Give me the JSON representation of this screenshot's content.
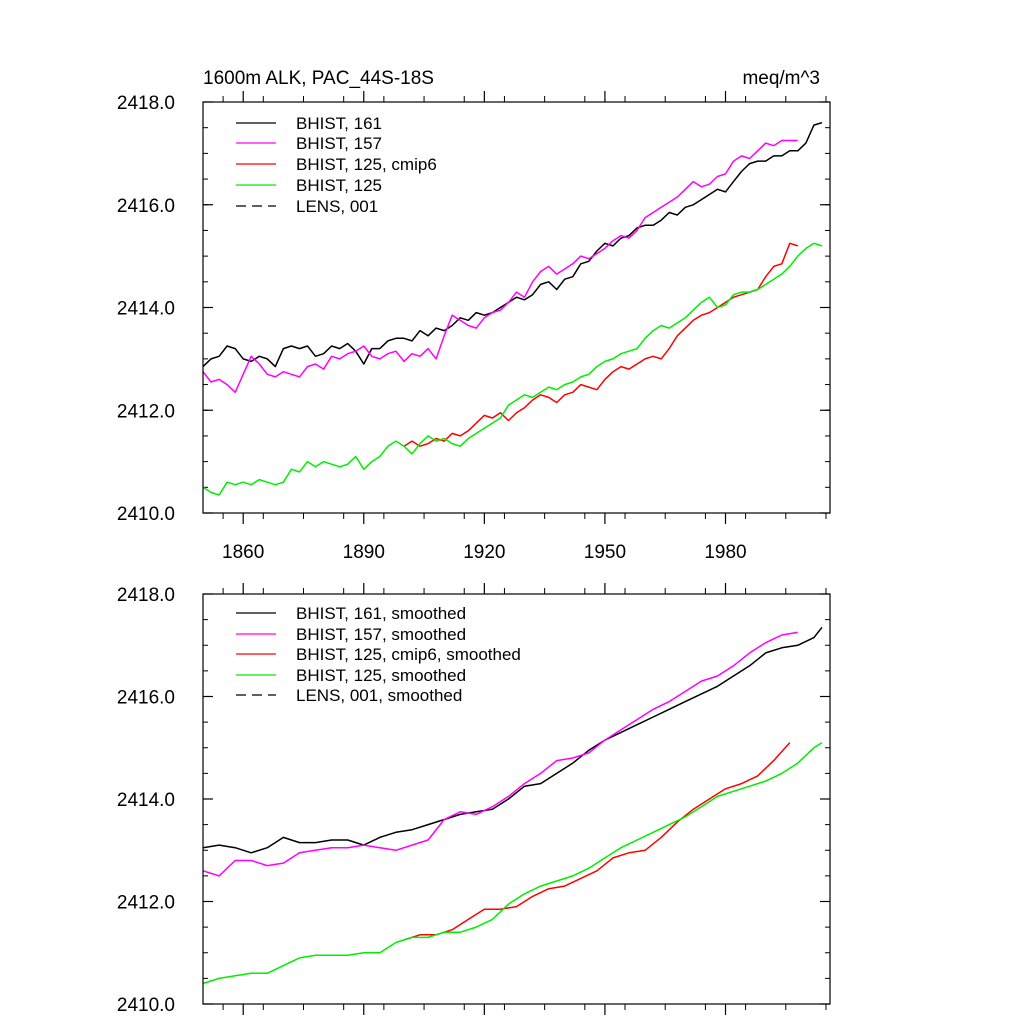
{
  "colors": {
    "BHIST_161": "#000000",
    "BHIST_157": "#ff00ff",
    "BHIST_125_cmip6": "#ff0000",
    "BHIST_125": "#00ee00",
    "LENS_001": "#000000"
  },
  "chart_data": [
    {
      "type": "line",
      "title": "1600m ALK, PAC_44S-18S",
      "units": "meq/m^3",
      "xlabel": "",
      "ylabel": "",
      "xlim": [
        1850,
        2006
      ],
      "ylim": [
        2410,
        2418
      ],
      "xticks": [
        1860,
        1890,
        1920,
        1950,
        1980
      ],
      "xtick_labels": [
        "1860",
        "1890",
        "1920",
        "1950",
        "1980"
      ],
      "yticks": [
        2410,
        2412,
        2414,
        2416,
        2418
      ],
      "ytick_labels": [
        "2410.0",
        "2412.0",
        "2414.0",
        "2416.0",
        "2418.0"
      ],
      "legend": [
        "BHIST, 161",
        "BHIST, 157",
        "BHIST, 125, cmip6",
        "BHIST, 125",
        "LENS, 001"
      ],
      "legend_position": "top-left",
      "series": [
        {
          "name": "BHIST, 161",
          "color_key": "BHIST_161",
          "dash": "solid",
          "x": [
            1850,
            1852,
            1854,
            1856,
            1858,
            1860,
            1862,
            1864,
            1866,
            1868,
            1870,
            1872,
            1874,
            1876,
            1878,
            1880,
            1882,
            1884,
            1886,
            1888,
            1890,
            1892,
            1894,
            1896,
            1898,
            1900,
            1902,
            1904,
            1906,
            1908,
            1910,
            1912,
            1914,
            1916,
            1918,
            1920,
            1922,
            1924,
            1926,
            1928,
            1930,
            1932,
            1934,
            1936,
            1938,
            1940,
            1942,
            1944,
            1946,
            1948,
            1950,
            1952,
            1954,
            1956,
            1958,
            1960,
            1962,
            1964,
            1966,
            1968,
            1970,
            1972,
            1974,
            1976,
            1978,
            1980,
            1982,
            1984,
            1986,
            1988,
            1990,
            1992,
            1994,
            1996,
            1998,
            2000,
            2002,
            2004
          ],
          "y": [
            2412.85,
            2413.0,
            2413.05,
            2413.25,
            2413.2,
            2413.0,
            2412.95,
            2413.05,
            2413.0,
            2412.85,
            2413.2,
            2413.25,
            2413.2,
            2413.25,
            2413.05,
            2413.1,
            2413.25,
            2413.2,
            2413.3,
            2413.15,
            2412.9,
            2413.2,
            2413.2,
            2413.35,
            2413.4,
            2413.4,
            2413.35,
            2413.55,
            2413.45,
            2413.6,
            2413.55,
            2413.65,
            2413.8,
            2413.75,
            2413.9,
            2413.85,
            2413.9,
            2414.0,
            2414.1,
            2414.2,
            2414.15,
            2414.25,
            2414.45,
            2414.5,
            2414.35,
            2414.55,
            2414.6,
            2414.85,
            2414.9,
            2415.1,
            2415.25,
            2415.2,
            2415.35,
            2415.4,
            2415.55,
            2415.6,
            2415.6,
            2415.7,
            2415.85,
            2415.8,
            2415.95,
            2416.0,
            2416.1,
            2416.2,
            2416.3,
            2416.25,
            2416.45,
            2416.65,
            2416.8,
            2416.85,
            2416.85,
            2416.95,
            2416.95,
            2417.05,
            2417.05,
            2417.2,
            2417.55,
            2417.6
          ]
        },
        {
          "name": "BHIST, 157",
          "color_key": "BHIST_157",
          "dash": "solid",
          "x": [
            1850,
            1852,
            1854,
            1856,
            1858,
            1860,
            1862,
            1864,
            1866,
            1868,
            1870,
            1872,
            1874,
            1876,
            1878,
            1880,
            1882,
            1884,
            1886,
            1888,
            1890,
            1892,
            1894,
            1896,
            1898,
            1900,
            1902,
            1904,
            1906,
            1908,
            1910,
            1912,
            1914,
            1916,
            1918,
            1920,
            1922,
            1924,
            1926,
            1928,
            1930,
            1932,
            1934,
            1936,
            1938,
            1940,
            1942,
            1944,
            1946,
            1948,
            1950,
            1952,
            1954,
            1956,
            1958,
            1960,
            1962,
            1964,
            1966,
            1968,
            1970,
            1972,
            1974,
            1976,
            1978,
            1980,
            1982,
            1984,
            1986,
            1988,
            1990,
            1992,
            1994,
            1996,
            1998
          ],
          "y": [
            2412.75,
            2412.55,
            2412.6,
            2412.5,
            2412.35,
            2412.7,
            2413.05,
            2412.9,
            2412.7,
            2412.65,
            2412.75,
            2412.7,
            2412.65,
            2412.85,
            2412.9,
            2412.8,
            2413.05,
            2413.0,
            2413.1,
            2413.15,
            2413.25,
            2413.05,
            2413.0,
            2413.1,
            2413.15,
            2412.95,
            2413.1,
            2413.05,
            2413.2,
            2413.0,
            2413.45,
            2413.85,
            2413.75,
            2413.65,
            2413.6,
            2413.8,
            2413.9,
            2413.95,
            2414.1,
            2414.3,
            2414.2,
            2414.5,
            2414.7,
            2414.8,
            2414.65,
            2414.75,
            2414.85,
            2415.0,
            2414.95,
            2415.05,
            2415.15,
            2415.3,
            2415.4,
            2415.35,
            2415.5,
            2415.75,
            2415.85,
            2415.95,
            2416.05,
            2416.15,
            2416.3,
            2416.45,
            2416.35,
            2416.4,
            2416.55,
            2416.6,
            2416.85,
            2416.95,
            2416.9,
            2417.05,
            2417.2,
            2417.15,
            2417.25,
            2417.25,
            2417.25
          ]
        },
        {
          "name": "BHIST, 125, cmip6",
          "color_key": "BHIST_125_cmip6",
          "dash": "solid",
          "x": [
            1900,
            1902,
            1904,
            1906,
            1908,
            1910,
            1912,
            1914,
            1916,
            1918,
            1920,
            1922,
            1924,
            1926,
            1928,
            1930,
            1932,
            1934,
            1936,
            1938,
            1940,
            1942,
            1944,
            1946,
            1948,
            1950,
            1952,
            1954,
            1956,
            1958,
            1960,
            1962,
            1964,
            1966,
            1968,
            1970,
            1972,
            1974,
            1976,
            1978,
            1980,
            1982,
            1984,
            1986,
            1988,
            1990,
            1992,
            1994,
            1996,
            1998
          ],
          "y": [
            2411.3,
            2411.4,
            2411.3,
            2411.35,
            2411.45,
            2411.4,
            2411.55,
            2411.5,
            2411.6,
            2411.75,
            2411.9,
            2411.85,
            2411.95,
            2411.8,
            2411.95,
            2412.05,
            2412.2,
            2412.3,
            2412.25,
            2412.15,
            2412.3,
            2412.35,
            2412.5,
            2412.45,
            2412.4,
            2412.6,
            2412.75,
            2412.85,
            2412.8,
            2412.9,
            2413.0,
            2413.05,
            2413.0,
            2413.2,
            2413.45,
            2413.6,
            2413.75,
            2413.85,
            2413.9,
            2414.0,
            2414.1,
            2414.2,
            2414.25,
            2414.3,
            2414.35,
            2414.6,
            2414.8,
            2414.85,
            2415.25,
            2415.2
          ]
        },
        {
          "name": "BHIST, 125",
          "color_key": "BHIST_125",
          "dash": "solid",
          "x": [
            1850,
            1852,
            1854,
            1856,
            1858,
            1860,
            1862,
            1864,
            1866,
            1868,
            1870,
            1872,
            1874,
            1876,
            1878,
            1880,
            1882,
            1884,
            1886,
            1888,
            1890,
            1892,
            1894,
            1896,
            1898,
            1900,
            1902,
            1904,
            1906,
            1908,
            1910,
            1912,
            1914,
            1916,
            1918,
            1920,
            1922,
            1924,
            1926,
            1928,
            1930,
            1932,
            1934,
            1936,
            1938,
            1940,
            1942,
            1944,
            1946,
            1948,
            1950,
            1952,
            1954,
            1956,
            1958,
            1960,
            1962,
            1964,
            1966,
            1968,
            1970,
            1972,
            1974,
            1976,
            1978,
            1980,
            1982,
            1984,
            1986,
            1988,
            1990,
            1992,
            1994,
            1996,
            1998,
            2000,
            2002,
            2004
          ],
          "y": [
            2410.5,
            2410.4,
            2410.35,
            2410.6,
            2410.55,
            2410.6,
            2410.55,
            2410.65,
            2410.6,
            2410.55,
            2410.6,
            2410.85,
            2410.8,
            2411.0,
            2410.9,
            2411.0,
            2410.95,
            2410.9,
            2410.95,
            2411.1,
            2410.85,
            2411.0,
            2411.1,
            2411.3,
            2411.4,
            2411.3,
            2411.15,
            2411.35,
            2411.5,
            2411.4,
            2411.45,
            2411.35,
            2411.3,
            2411.45,
            2411.55,
            2411.65,
            2411.75,
            2411.85,
            2412.1,
            2412.2,
            2412.3,
            2412.25,
            2412.35,
            2412.45,
            2412.4,
            2412.5,
            2412.55,
            2412.65,
            2412.7,
            2412.85,
            2412.95,
            2413.0,
            2413.1,
            2413.15,
            2413.2,
            2413.4,
            2413.55,
            2413.65,
            2413.6,
            2413.7,
            2413.8,
            2413.95,
            2414.1,
            2414.2,
            2414.0,
            2414.05,
            2414.25,
            2414.3,
            2414.3,
            2414.35,
            2414.45,
            2414.55,
            2414.65,
            2414.8,
            2415.0,
            2415.15,
            2415.25,
            2415.2
          ]
        }
      ]
    },
    {
      "type": "line",
      "title": "",
      "units": "",
      "xlabel": "",
      "ylabel": "",
      "xlim": [
        1850,
        2006
      ],
      "ylim": [
        2410,
        2418
      ],
      "xticks": [
        1860,
        1890,
        1920,
        1950,
        1980
      ],
      "xtick_labels": [],
      "yticks": [
        2410,
        2412,
        2414,
        2416,
        2418
      ],
      "ytick_labels": [
        "2410.0",
        "2412.0",
        "2414.0",
        "2416.0",
        "2418.0"
      ],
      "legend": [
        "BHIST, 161, smoothed",
        "BHIST, 157, smoothed",
        "BHIST, 125, cmip6, smoothed",
        "BHIST, 125, smoothed",
        "LENS, 001, smoothed"
      ],
      "legend_position": "top-left",
      "series": [
        {
          "name": "BHIST, 161, smoothed",
          "color_key": "BHIST_161",
          "dash": "solid",
          "x": [
            1850,
            1854,
            1858,
            1862,
            1866,
            1870,
            1874,
            1878,
            1882,
            1886,
            1890,
            1894,
            1898,
            1902,
            1906,
            1910,
            1914,
            1918,
            1922,
            1926,
            1930,
            1934,
            1938,
            1942,
            1946,
            1950,
            1954,
            1958,
            1962,
            1966,
            1970,
            1974,
            1978,
            1982,
            1986,
            1990,
            1994,
            1998,
            2002,
            2004
          ],
          "y": [
            2413.05,
            2413.1,
            2413.05,
            2412.95,
            2413.05,
            2413.25,
            2413.15,
            2413.15,
            2413.2,
            2413.2,
            2413.1,
            2413.25,
            2413.35,
            2413.4,
            2413.5,
            2413.6,
            2413.7,
            2413.75,
            2413.8,
            2414.0,
            2414.25,
            2414.3,
            2414.5,
            2414.7,
            2414.95,
            2415.15,
            2415.3,
            2415.45,
            2415.6,
            2415.75,
            2415.9,
            2416.05,
            2416.2,
            2416.4,
            2416.6,
            2416.85,
            2416.95,
            2417.0,
            2417.15,
            2417.35
          ]
        },
        {
          "name": "BHIST, 157, smoothed",
          "color_key": "BHIST_157",
          "dash": "solid",
          "x": [
            1850,
            1854,
            1858,
            1862,
            1866,
            1870,
            1874,
            1878,
            1882,
            1886,
            1890,
            1894,
            1898,
            1902,
            1906,
            1910,
            1914,
            1918,
            1922,
            1926,
            1930,
            1934,
            1938,
            1942,
            1946,
            1950,
            1954,
            1958,
            1962,
            1966,
            1970,
            1974,
            1978,
            1982,
            1986,
            1990,
            1994,
            1998
          ],
          "y": [
            2412.6,
            2412.5,
            2412.8,
            2412.8,
            2412.7,
            2412.75,
            2412.95,
            2413.0,
            2413.05,
            2413.05,
            2413.1,
            2413.05,
            2413.0,
            2413.1,
            2413.2,
            2413.6,
            2413.75,
            2413.7,
            2413.85,
            2414.05,
            2414.3,
            2414.5,
            2414.75,
            2414.8,
            2414.9,
            2415.15,
            2415.35,
            2415.55,
            2415.75,
            2415.9,
            2416.1,
            2416.3,
            2416.4,
            2416.6,
            2416.85,
            2417.05,
            2417.2,
            2417.25
          ]
        },
        {
          "name": "BHIST, 125, cmip6, smoothed",
          "color_key": "BHIST_125_cmip6",
          "dash": "solid",
          "x": [
            1900,
            1904,
            1908,
            1912,
            1916,
            1920,
            1924,
            1928,
            1932,
            1936,
            1940,
            1944,
            1948,
            1952,
            1956,
            1960,
            1964,
            1968,
            1972,
            1976,
            1980,
            1984,
            1988,
            1992,
            1996
          ],
          "y": [
            2411.25,
            2411.35,
            2411.35,
            2411.45,
            2411.65,
            2411.85,
            2411.85,
            2411.9,
            2412.1,
            2412.25,
            2412.3,
            2412.45,
            2412.6,
            2412.85,
            2412.95,
            2413.0,
            2413.25,
            2413.55,
            2413.8,
            2414.0,
            2414.2,
            2414.3,
            2414.45,
            2414.75,
            2415.1
          ]
        },
        {
          "name": "BHIST, 125, smoothed",
          "color_key": "BHIST_125",
          "dash": "solid",
          "x": [
            1850,
            1854,
            1858,
            1862,
            1866,
            1870,
            1874,
            1878,
            1882,
            1886,
            1890,
            1894,
            1898,
            1902,
            1906,
            1910,
            1914,
            1918,
            1922,
            1926,
            1930,
            1934,
            1938,
            1942,
            1946,
            1950,
            1954,
            1958,
            1962,
            1966,
            1970,
            1974,
            1978,
            1982,
            1986,
            1990,
            1994,
            1998,
            2002,
            2004
          ],
          "y": [
            2410.4,
            2410.5,
            2410.55,
            2410.6,
            2410.6,
            2410.75,
            2410.9,
            2410.95,
            2410.95,
            2410.95,
            2411.0,
            2411.0,
            2411.2,
            2411.3,
            2411.3,
            2411.4,
            2411.4,
            2411.5,
            2411.65,
            2411.95,
            2412.15,
            2412.3,
            2412.4,
            2412.5,
            2412.65,
            2412.85,
            2413.05,
            2413.2,
            2413.35,
            2413.5,
            2413.65,
            2413.85,
            2414.05,
            2414.15,
            2414.25,
            2414.35,
            2414.5,
            2414.7,
            2415.0,
            2415.1
          ]
        }
      ]
    }
  ]
}
